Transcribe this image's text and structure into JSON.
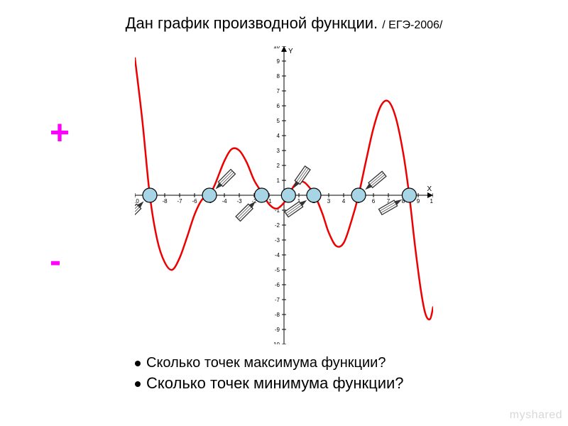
{
  "title": {
    "main": "Дан  график  производной  функции.",
    "sub": "/ ЕГЭ-2006/",
    "fontsize_main": 22,
    "fontsize_sub": 16,
    "color": "#000000"
  },
  "side_labels": {
    "plus": "+",
    "minus": "-",
    "color": "#ff00ff",
    "fontsize": 48
  },
  "questions": {
    "q1": "Сколько  точек  максимума  функции?",
    "q2": "Сколько  точек  минимума  функции?",
    "fontsize_q1": 20,
    "fontsize_q2": 22
  },
  "watermark": {
    "text": "myshared",
    "color": "#d8d8d8"
  },
  "chart": {
    "type": "line",
    "background_color": "#ffffff",
    "xlim": [
      -10,
      10
    ],
    "ylim": [
      -10,
      10
    ],
    "xtick_step": 1,
    "ytick_step": 1,
    "grid": false,
    "axis_color": "#000000",
    "tick_color": "#000000",
    "tick_fontsize": 8,
    "axis_labels": {
      "x": "X",
      "y": "Y"
    },
    "arrowheads": true,
    "curve": {
      "color": "#ee0000",
      "width": 2.5,
      "points": [
        [
          -10,
          9.2
        ],
        [
          -9.5,
          5.0
        ],
        [
          -9,
          0
        ],
        [
          -8.5,
          -3.0
        ],
        [
          -8,
          -4.5
        ],
        [
          -7.5,
          -5.0
        ],
        [
          -7,
          -4.2
        ],
        [
          -6.5,
          -2.8
        ],
        [
          -6,
          -1.3
        ],
        [
          -5.5,
          -0.3
        ],
        [
          -5,
          0
        ],
        [
          -4.6,
          0.8
        ],
        [
          -4,
          2.3
        ],
        [
          -3.5,
          3.1
        ],
        [
          -3,
          3.0
        ],
        [
          -2.5,
          2.2
        ],
        [
          -2,
          1.0
        ],
        [
          -1.5,
          0.2
        ],
        [
          -1,
          -0.6
        ],
        [
          -0.5,
          -0.9
        ],
        [
          0,
          -0.5
        ],
        [
          0.3,
          0
        ],
        [
          0.8,
          0.8
        ],
        [
          1.3,
          0.9
        ],
        [
          1.8,
          0.4
        ],
        [
          2.2,
          -0.3
        ],
        [
          2.6,
          -1.3
        ],
        [
          3,
          -2.5
        ],
        [
          3.5,
          -3.4
        ],
        [
          4,
          -3.2
        ],
        [
          4.5,
          -1.8
        ],
        [
          5,
          0
        ],
        [
          5.5,
          2.3
        ],
        [
          6,
          4.5
        ],
        [
          6.5,
          6.0
        ],
        [
          7,
          6.3
        ],
        [
          7.5,
          5.2
        ],
        [
          8,
          2.8
        ],
        [
          8.4,
          0
        ],
        [
          8.8,
          -3.5
        ],
        [
          9.2,
          -6.5
        ],
        [
          9.5,
          -8.0
        ],
        [
          9.8,
          -8.3
        ],
        [
          10,
          -7.5
        ]
      ]
    },
    "markers": {
      "x_values": [
        -9,
        -5,
        -1.5,
        0.3,
        2,
        5,
        8.4
      ],
      "radius": 10,
      "fill": "#a8d5e5",
      "stroke": "#000000",
      "stroke_width": 1.2
    },
    "arrows_to_markers": {
      "stroke": "#333333",
      "stroke_width": 1.3,
      "fill": "#ffffff",
      "length": 35,
      "width": 9,
      "per_marker": [
        {
          "angle_deg": 225
        },
        {
          "angle_deg": 45
        },
        {
          "angle_deg": 225
        },
        {
          "angle_deg": 55
        },
        {
          "angle_deg": 215
        },
        {
          "angle_deg": 40
        },
        {
          "angle_deg": 210
        }
      ]
    }
  }
}
